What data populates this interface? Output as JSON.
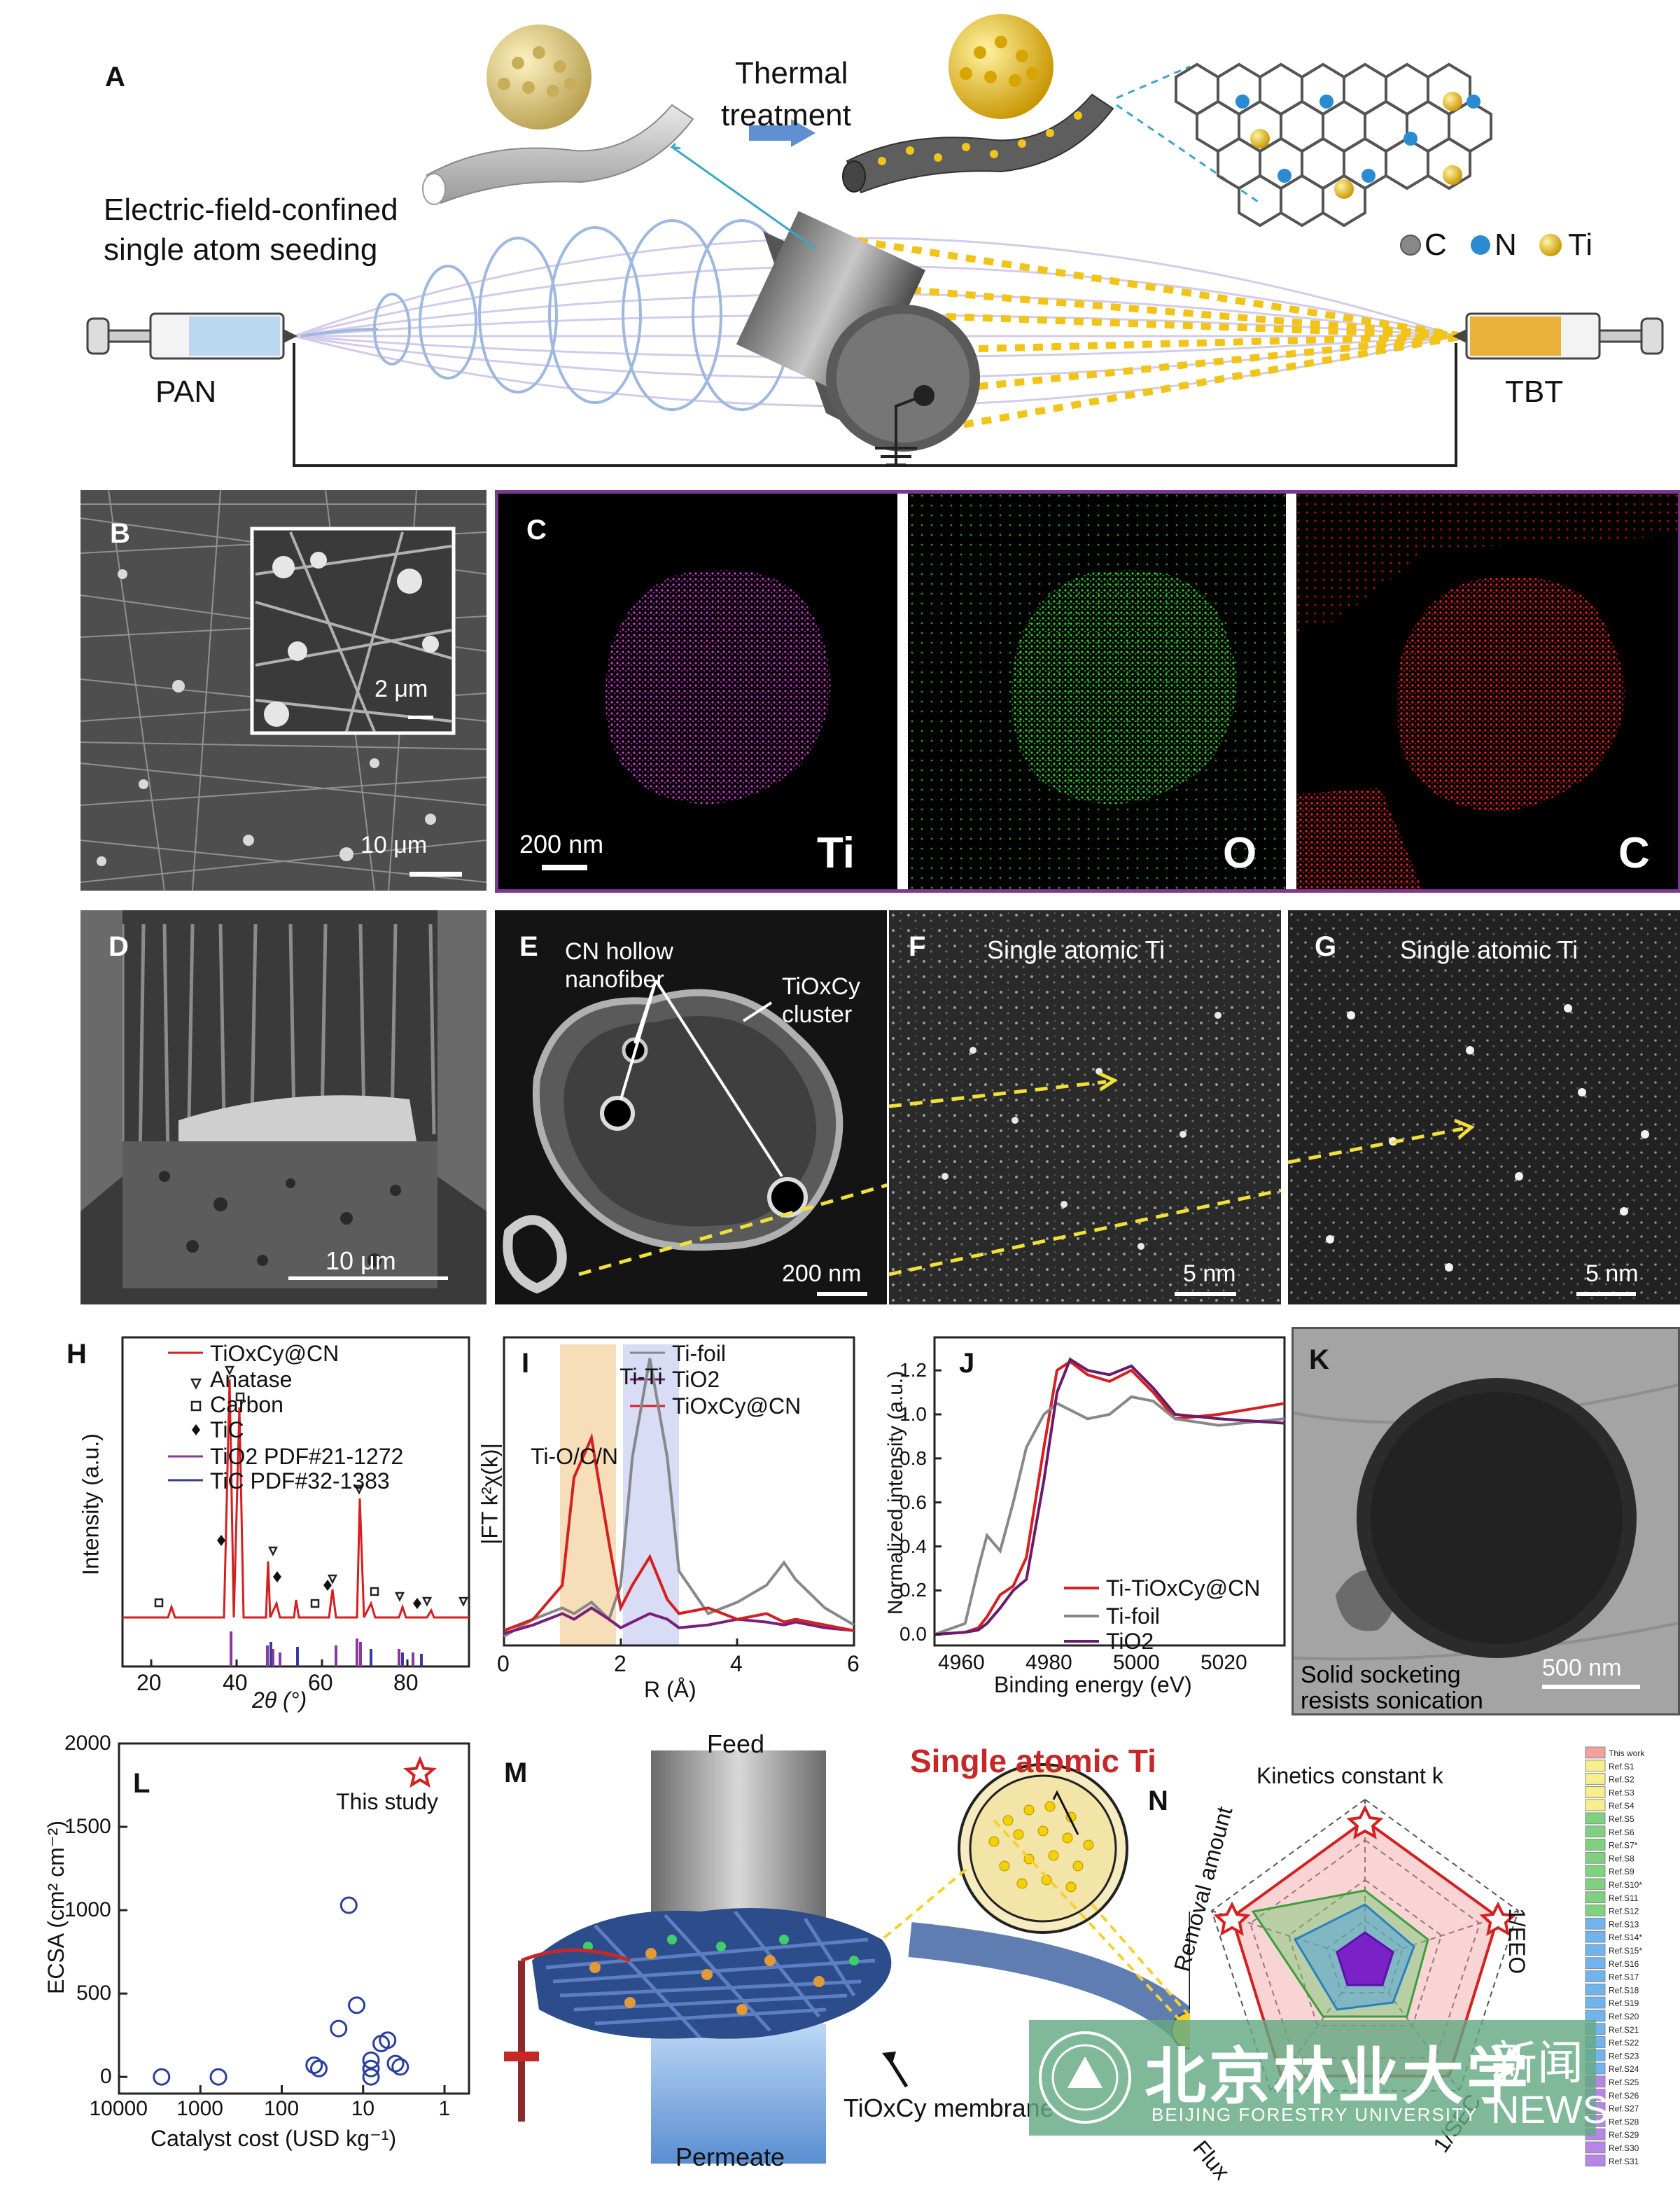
{
  "panels": {
    "A": {
      "letter": "A",
      "thermal_line1": "Thermal",
      "thermal_line2": "treatment",
      "field_line1": "Electric-field-confined",
      "field_line2": "single atom seeding",
      "pan": "PAN",
      "tbt": "TBT",
      "legend": {
        "c": "C",
        "n": "N",
        "ti": "Ti"
      }
    },
    "B": {
      "letter": "B",
      "inset_scale": "2 μm",
      "scale": "10 μm"
    },
    "C": {
      "letter": "C",
      "scale": "200 nm",
      "map_ti": "Ti",
      "map_o": "O",
      "map_c": "C"
    },
    "D": {
      "letter": "D",
      "scale": "10 μm"
    },
    "E": {
      "letter": "E",
      "label_cn_1": "CN hollow",
      "label_cn_2": "nanofiber",
      "label_tio_1": "TiOxCy",
      "label_tio_2": "cluster",
      "scale": "200 nm"
    },
    "F": {
      "letter": "F",
      "title": "Single atomic Ti",
      "scale": "5 nm"
    },
    "G": {
      "letter": "G",
      "title": "Single atomic Ti",
      "scale": "5 nm"
    },
    "H": {
      "letter": "H",
      "legend": [
        "TiOxCy@CN",
        "Anatase",
        "Carbon",
        "TiC",
        "TiO2 PDF#21-1272",
        "TiC PDF#32-1383"
      ],
      "ylabel": "Intensity (a.u.)",
      "xlabel": "2θ (°)",
      "xticks": [
        "20",
        "40",
        "60",
        "80"
      ]
    },
    "I": {
      "letter": "I",
      "legend": [
        "Ti-foil",
        "TiO2",
        "TiOxCy@CN"
      ],
      "band1": "Ti-O/C/N",
      "band2": "Ti-Ti",
      "ylabel": "|FT k²χ(k)|",
      "xlabel": "R (Å)",
      "xticks": [
        "0",
        "2",
        "4",
        "6"
      ]
    },
    "J": {
      "letter": "J",
      "legend": [
        "Ti-TiOxCy@CN",
        "Ti-foil",
        "TiO2"
      ],
      "ylabel": "Normalized intensity (a.u.)",
      "xlabel": "Binding energy (eV)",
      "xticks": [
        "4960",
        "4980",
        "5000",
        "5020"
      ],
      "yticks": [
        "0.0",
        "0.2",
        "0.4",
        "0.6",
        "0.8",
        "1.0",
        "1.2"
      ]
    },
    "K": {
      "letter": "K",
      "caption1": "Solid socketing",
      "caption2": "resists sonication",
      "scale": "500 nm"
    },
    "L": {
      "letter": "L",
      "annotation": "This study",
      "ylabel": "ECSA (cm² cm⁻²)",
      "xlabel": "Catalyst cost (USD kg⁻¹)",
      "yticks": [
        "0",
        "500",
        "1000",
        "1500",
        "2000"
      ],
      "xticks": [
        "10000",
        "1000",
        "100",
        "10",
        "1"
      ]
    },
    "M": {
      "letter": "M",
      "feed": "Feed",
      "permeate": "Permeate",
      "title": "Single atomic Ti",
      "membrane": "TiOxCy membrane"
    },
    "N": {
      "letter": "N",
      "axes": [
        "Kinetics constant k",
        "1/EEO",
        "1/SEC",
        "Flux",
        "Removal amount"
      ],
      "legend": [
        "This work",
        "Ref.S1",
        "Ref.S2",
        "Ref.S3",
        "Ref.S4",
        "Ref.S5",
        "Ref.S6",
        "Ref.S7*",
        "Ref.S8",
        "Ref.S9",
        "Ref.S10*",
        "Ref.S11",
        "Ref.S12",
        "Ref.S13",
        "Ref.S14*",
        "Ref.S15*",
        "Ref.S16",
        "Ref.S17",
        "Ref.S18",
        "Ref.S19",
        "Ref.S20",
        "Ref.S21",
        "Ref.S22",
        "Ref.S23",
        "Ref.S24",
        "Ref.S25",
        "Ref.S26",
        "Ref.S27",
        "Ref.S28",
        "Ref.S29",
        "Ref.S30",
        "Ref.S31"
      ]
    }
  },
  "watermark": {
    "cn": "北京林业大学",
    "en": "BEIJING FORESTRY UNIVERSITY",
    "news_cn": "新闻",
    "news_en": "NEWS"
  },
  "chart_data": [
    {
      "type": "line",
      "panel": "I",
      "xlabel": "R (Å)",
      "ylabel": "|FT k²χ(k)|",
      "xlim": [
        0,
        6
      ],
      "x": [
        0.0,
        0.5,
        1.0,
        1.2,
        1.5,
        1.8,
        2.0,
        2.2,
        2.5,
        2.8,
        3.0,
        3.5,
        4.0,
        4.5,
        4.8,
        5.0,
        5.5,
        6.0
      ],
      "series": [
        {
          "name": "Ti-foil",
          "color": "#888888",
          "values": [
            0.02,
            0.08,
            0.12,
            0.1,
            0.14,
            0.08,
            0.2,
            0.65,
            1.0,
            0.65,
            0.25,
            0.1,
            0.14,
            0.2,
            0.28,
            0.22,
            0.12,
            0.06
          ]
        },
        {
          "name": "TiO2",
          "color": "#7a1f7a",
          "values": [
            0.03,
            0.06,
            0.1,
            0.08,
            0.12,
            0.08,
            0.05,
            0.07,
            0.1,
            0.08,
            0.05,
            0.06,
            0.08,
            0.07,
            0.06,
            0.07,
            0.05,
            0.04
          ]
        },
        {
          "name": "TiOxCy@CN",
          "color": "#d42020",
          "values": [
            0.04,
            0.08,
            0.2,
            0.58,
            0.72,
            0.35,
            0.12,
            0.2,
            0.3,
            0.15,
            0.1,
            0.12,
            0.08,
            0.1,
            0.07,
            0.08,
            0.06,
            0.04
          ]
        }
      ]
    },
    {
      "type": "line",
      "panel": "J",
      "xlabel": "Binding energy (eV)",
      "ylabel": "Normalized intensity (a.u.)",
      "xlim": [
        4955,
        5035
      ],
      "ylim": [
        -0.05,
        1.35
      ],
      "x": [
        4955,
        4962,
        4965,
        4967,
        4970,
        4973,
        4976,
        4980,
        4983,
        4986,
        4990,
        4995,
        5000,
        5005,
        5010,
        5020,
        5035
      ],
      "series": [
        {
          "name": "Ti-TiOxCy@CN",
          "color": "#d42020",
          "values": [
            0.0,
            0.01,
            0.03,
            0.08,
            0.18,
            0.22,
            0.35,
            0.85,
            1.2,
            1.24,
            1.18,
            1.15,
            1.2,
            1.1,
            0.98,
            1.0,
            1.05
          ]
        },
        {
          "name": "Ti-foil",
          "color": "#888888",
          "values": [
            0.0,
            0.05,
            0.3,
            0.45,
            0.38,
            0.6,
            0.85,
            1.0,
            1.05,
            1.02,
            0.98,
            1.0,
            1.08,
            1.06,
            0.98,
            0.95,
            0.98
          ]
        },
        {
          "name": "TiO2",
          "color": "#6a1b6a",
          "values": [
            0.0,
            0.01,
            0.02,
            0.05,
            0.12,
            0.2,
            0.25,
            0.7,
            1.1,
            1.25,
            1.2,
            1.18,
            1.22,
            1.12,
            1.0,
            0.98,
            0.96
          ]
        }
      ]
    },
    {
      "type": "scatter",
      "panel": "L",
      "xlabel": "Catalyst cost (USD kg⁻¹)",
      "ylabel": "ECSA (cm² cm⁻²)",
      "xscale": "log-reversed",
      "xlim": [
        10000,
        0.5
      ],
      "ylim": [
        -100,
        2000
      ],
      "series": [
        {
          "name": "This study",
          "marker": "star",
          "points": [
            [
              2,
              1820
            ]
          ]
        },
        {
          "name": "",
          "marker": "circle",
          "points": [
            [
              3000,
              0
            ],
            [
              600,
              0
            ],
            [
              40,
              70
            ],
            [
              35,
              50
            ],
            [
              20,
              290
            ],
            [
              15,
              1030
            ],
            [
              12,
              430
            ],
            [
              8,
              100
            ],
            [
              8,
              50
            ],
            [
              8,
              0
            ],
            [
              6,
              200
            ],
            [
              5,
              220
            ],
            [
              4,
              80
            ],
            [
              3.5,
              60
            ]
          ]
        }
      ]
    }
  ]
}
